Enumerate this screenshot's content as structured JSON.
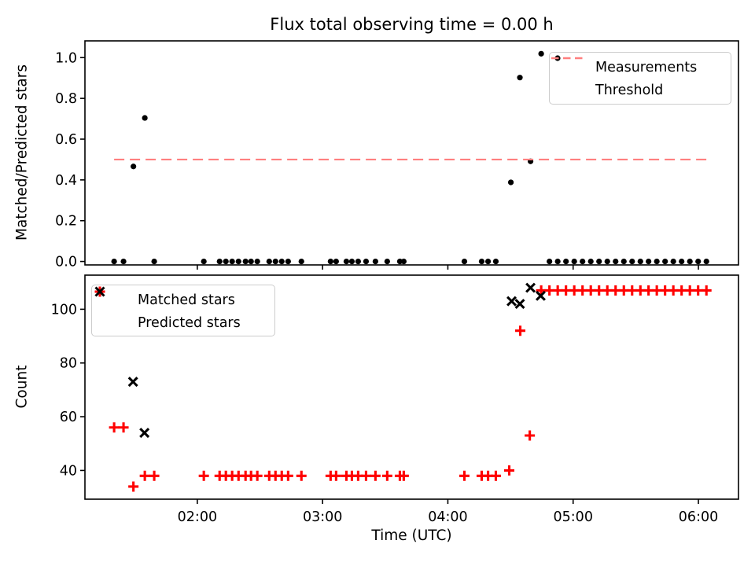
{
  "figure": {
    "title": "Flux total observing time = 0.00 h",
    "xlabel": "Time (UTC)"
  },
  "chart_data": [
    {
      "type": "scatter",
      "title": "Flux total observing time = 0.00 h",
      "ylabel": "Matched/Predicted stars",
      "xlim": [
        1.103,
        6.32
      ],
      "ylim": [
        -0.017,
        1.082
      ],
      "yticks": [
        0.0,
        0.2,
        0.4,
        0.6,
        0.8,
        1.0
      ],
      "ytick_labels": [
        "0.0",
        "0.2",
        "0.4",
        "0.6",
        "0.8",
        "1.0"
      ],
      "xticks": [
        2,
        3,
        4,
        5,
        6
      ],
      "grid": false,
      "legend_position": "upper right",
      "series": [
        {
          "name": "Measurements",
          "marker": "dot",
          "color": "#000000",
          "points": [
            [
              1.336,
              0.0
            ],
            [
              1.411,
              0.0
            ],
            [
              1.49,
              0.466
            ],
            [
              1.581,
              0.704
            ],
            [
              1.656,
              0.0
            ],
            [
              2.052,
              0.0
            ],
            [
              2.178,
              0.0
            ],
            [
              2.228,
              0.0
            ],
            [
              2.278,
              0.0
            ],
            [
              2.329,
              0.0
            ],
            [
              2.385,
              0.0
            ],
            [
              2.429,
              0.0
            ],
            [
              2.479,
              0.0
            ],
            [
              2.574,
              0.0
            ],
            [
              2.624,
              0.0
            ],
            [
              2.674,
              0.0
            ],
            [
              2.725,
              0.0
            ],
            [
              2.831,
              0.0
            ],
            [
              3.064,
              0.0
            ],
            [
              3.108,
              0.0
            ],
            [
              3.19,
              0.0
            ],
            [
              3.234,
              0.0
            ],
            [
              3.284,
              0.0
            ],
            [
              3.347,
              0.0
            ],
            [
              3.422,
              0.0
            ],
            [
              3.516,
              0.0
            ],
            [
              3.617,
              0.0
            ],
            [
              3.648,
              0.0
            ],
            [
              4.132,
              0.0
            ],
            [
              4.27,
              0.0
            ],
            [
              4.321,
              0.0
            ],
            [
              4.383,
              0.0
            ],
            [
              4.503,
              0.388
            ],
            [
              4.575,
              0.902
            ],
            [
              4.66,
              0.491
            ],
            [
              4.745,
              1.019
            ],
            [
              4.811,
              0.0
            ],
            [
              4.877,
              0.0
            ],
            [
              4.943,
              0.0
            ],
            [
              5.009,
              0.0
            ],
            [
              5.075,
              0.0
            ],
            [
              5.141,
              0.0
            ],
            [
              5.207,
              0.0
            ],
            [
              5.273,
              0.0
            ],
            [
              5.339,
              0.0
            ],
            [
              5.405,
              0.0
            ],
            [
              5.471,
              0.0
            ],
            [
              5.537,
              0.0
            ],
            [
              5.602,
              0.0
            ],
            [
              5.668,
              0.0
            ],
            [
              5.734,
              0.0
            ],
            [
              5.8,
              0.0
            ],
            [
              5.866,
              0.0
            ],
            [
              5.932,
              0.0
            ],
            [
              5.998,
              0.0
            ],
            [
              6.064,
              0.0
            ]
          ]
        },
        {
          "name": "Threshold",
          "style": "dashed",
          "color": "#ff7f7f",
          "y": 0.5,
          "x_range": [
            1.336,
            6.064
          ]
        }
      ]
    },
    {
      "type": "scatter",
      "ylabel": "Count",
      "xlabel": "Time (UTC)",
      "xlim": [
        1.103,
        6.32
      ],
      "ylim": [
        29.3,
        112.7
      ],
      "yticks": [
        40,
        60,
        80,
        100
      ],
      "ytick_labels": [
        "40",
        "60",
        "80",
        "100"
      ],
      "xticks": [
        2,
        3,
        4,
        5,
        6
      ],
      "xtick_labels": [
        "02:00",
        "03:00",
        "04:00",
        "05:00",
        "06:00"
      ],
      "grid": false,
      "legend_position": "upper left",
      "series": [
        {
          "name": "Matched stars",
          "marker": "plus",
          "color": "#ff0000",
          "points": [
            [
              1.336,
              56
            ],
            [
              1.411,
              56
            ],
            [
              1.49,
              34
            ],
            [
              1.581,
              38
            ],
            [
              1.656,
              38
            ],
            [
              2.052,
              38
            ],
            [
              2.178,
              38
            ],
            [
              2.228,
              38
            ],
            [
              2.278,
              38
            ],
            [
              2.329,
              38
            ],
            [
              2.385,
              38
            ],
            [
              2.429,
              38
            ],
            [
              2.479,
              38
            ],
            [
              2.574,
              38
            ],
            [
              2.624,
              38
            ],
            [
              2.674,
              38
            ],
            [
              2.725,
              38
            ],
            [
              2.831,
              38
            ],
            [
              3.064,
              38
            ],
            [
              3.108,
              38
            ],
            [
              3.19,
              38
            ],
            [
              3.234,
              38
            ],
            [
              3.284,
              38
            ],
            [
              3.347,
              38
            ],
            [
              3.422,
              38
            ],
            [
              3.516,
              38
            ],
            [
              3.617,
              38
            ],
            [
              3.648,
              38
            ],
            [
              4.132,
              38
            ],
            [
              4.27,
              38
            ],
            [
              4.321,
              38
            ],
            [
              4.383,
              38
            ],
            [
              4.49,
              40
            ],
            [
              4.578,
              92
            ],
            [
              4.654,
              53
            ],
            [
              4.745,
              107
            ],
            [
              4.811,
              107
            ],
            [
              4.877,
              107
            ],
            [
              4.943,
              107
            ],
            [
              5.009,
              107
            ],
            [
              5.075,
              107
            ],
            [
              5.141,
              107
            ],
            [
              5.207,
              107
            ],
            [
              5.273,
              107
            ],
            [
              5.339,
              107
            ],
            [
              5.405,
              107
            ],
            [
              5.471,
              107
            ],
            [
              5.537,
              107
            ],
            [
              5.602,
              107
            ],
            [
              5.668,
              107
            ],
            [
              5.734,
              107
            ],
            [
              5.8,
              107
            ],
            [
              5.866,
              107
            ],
            [
              5.932,
              107
            ],
            [
              5.998,
              107
            ],
            [
              6.064,
              107
            ]
          ]
        },
        {
          "name": "Predicted stars",
          "marker": "x",
          "color": "#000000",
          "points": [
            [
              1.487,
              73
            ],
            [
              1.578,
              54
            ],
            [
              4.509,
              103
            ],
            [
              4.575,
              102
            ],
            [
              4.66,
              108
            ],
            [
              4.741,
              105
            ]
          ]
        }
      ]
    }
  ]
}
